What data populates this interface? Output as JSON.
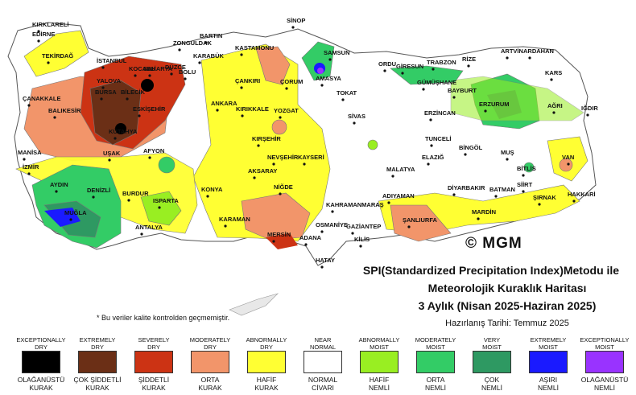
{
  "title": {
    "line1": "SPI(Standardized Precipitation Index)Metodu ile",
    "line2": "Meteorolojik Kuraklık Haritası",
    "line3": "3 Aylık (Nisan 2025-Haziran 2025)",
    "prepared": "Hazırlanış Tarihi: Temmuz 2025"
  },
  "note": "* Bu veriler kalite kontrolden geçmemiştir.",
  "logo": "© MGM",
  "colors": {
    "exceptionally_dry": "#000000",
    "extremely_dry": "#6b2f16",
    "severely_dry": "#cc3314",
    "moderately_dry": "#f2956a",
    "abnormally_dry": "#ffff33",
    "near_normal": "#ffffff",
    "abnormally_moist": "#99ee22",
    "moderately_moist": "#33cc66",
    "very_moist": "#2e9962",
    "extremely_moist": "#1a1aff",
    "exceptionally_moist": "#9933ff",
    "sea": "#ffffff",
    "border": "#555555"
  },
  "legend": [
    {
      "en": "EXCEPTIONALLY\nDRY",
      "tr": "OLAĞANÜSTÜ\nKURAK",
      "color": "#000000"
    },
    {
      "en": "EXTREMELY\nDRY",
      "tr": "ÇOK ŞİDDETLİ\nKURAK",
      "color": "#6b2f16"
    },
    {
      "en": "SEVERELY\nDRY",
      "tr": "ŞİDDETLİ\nKURAK",
      "color": "#cc3314"
    },
    {
      "en": "MODERATELY\nDRY",
      "tr": "ORTA\nKURAK",
      "color": "#f2956a"
    },
    {
      "en": "ABNORMALLY\nDRY",
      "tr": "HAFİF\nKURAK",
      "color": "#ffff33"
    },
    {
      "en": "NEAR\nNORMAL",
      "tr": "NORMAL\nCİVARI",
      "color": "#ffffff"
    },
    {
      "en": "ABNORMALLY\nMOIST",
      "tr": "HAFİF\nNEMLİ",
      "color": "#99ee22"
    },
    {
      "en": "MODERATELY\nMOIST",
      "tr": "ORTA\nNEMLİ",
      "color": "#33cc66"
    },
    {
      "en": "VERY\nMOIST",
      "tr": "ÇOK\nNEMLİ",
      "color": "#2e9962"
    },
    {
      "en": "EXTREMELY\nMOIST",
      "tr": "AŞIRI\nNEMLİ",
      "color": "#1a1aff"
    },
    {
      "en": "EXCEPTIONALLY\nMOIST",
      "tr": "OLAĞANÜSTÜ\nNEMLİ",
      "color": "#9933ff"
    }
  ],
  "cities": [
    "KIRKLARELİ",
    "EDİRNE",
    "TEKİRDAĞ",
    "İSTANBUL",
    "KOCAELİ",
    "SAKARYA",
    "DÜZCE",
    "BOLU",
    "YALOVA",
    "BURSA",
    "BİLECİK",
    "ÇANAKKALE",
    "BALIKESİR",
    "ESKİŞEHİR",
    "KÜTAHYA",
    "MANİSA",
    "İZMİR",
    "UŞAK",
    "AFYON",
    "AYDIN",
    "DENİZLİ",
    "MUĞLA",
    "BURDUR",
    "ISPARTA",
    "ANTALYA",
    "BARTIN",
    "ZONGULDAK",
    "KARABÜK",
    "KASTAMONU",
    "SİNOP",
    "SAMSUN",
    "ÇANKIRI",
    "ÇORUM",
    "AMASYA",
    "ANKARA",
    "KIRIKKALE",
    "YOZGAT",
    "TOKAT",
    "ORDU",
    "GİRESUN",
    "TRABZON",
    "RİZE",
    "ARTVİN",
    "ARDAHAN",
    "GÜMÜŞHANE",
    "BAYBURT",
    "ERZURUM",
    "KARS",
    "AĞRI",
    "IĞDIR",
    "ERZİNCAN",
    "SİVAS",
    "KIRŞEHİR",
    "NEVŞEHİR",
    "AKSARAY",
    "KAYSERİ",
    "KONYA",
    "NİĞDE",
    "KARAMAN",
    "MERSİN",
    "ADANA",
    "OSMANİYE",
    "HATAY",
    "KİLİS",
    "GAZİANTEP",
    "ŞANLIURFA",
    "ADIYAMAN",
    "KAHRAMANMARAŞ",
    "MALATYA",
    "ELAZIĞ",
    "TUNCELİ",
    "BİNGÖL",
    "MUŞ",
    "BİTLİS",
    "VAN",
    "DİYARBAKIR",
    "BATMAN",
    "SİİRT",
    "MARDİN",
    "ŞIRNAK",
    "HAKKARİ"
  ]
}
